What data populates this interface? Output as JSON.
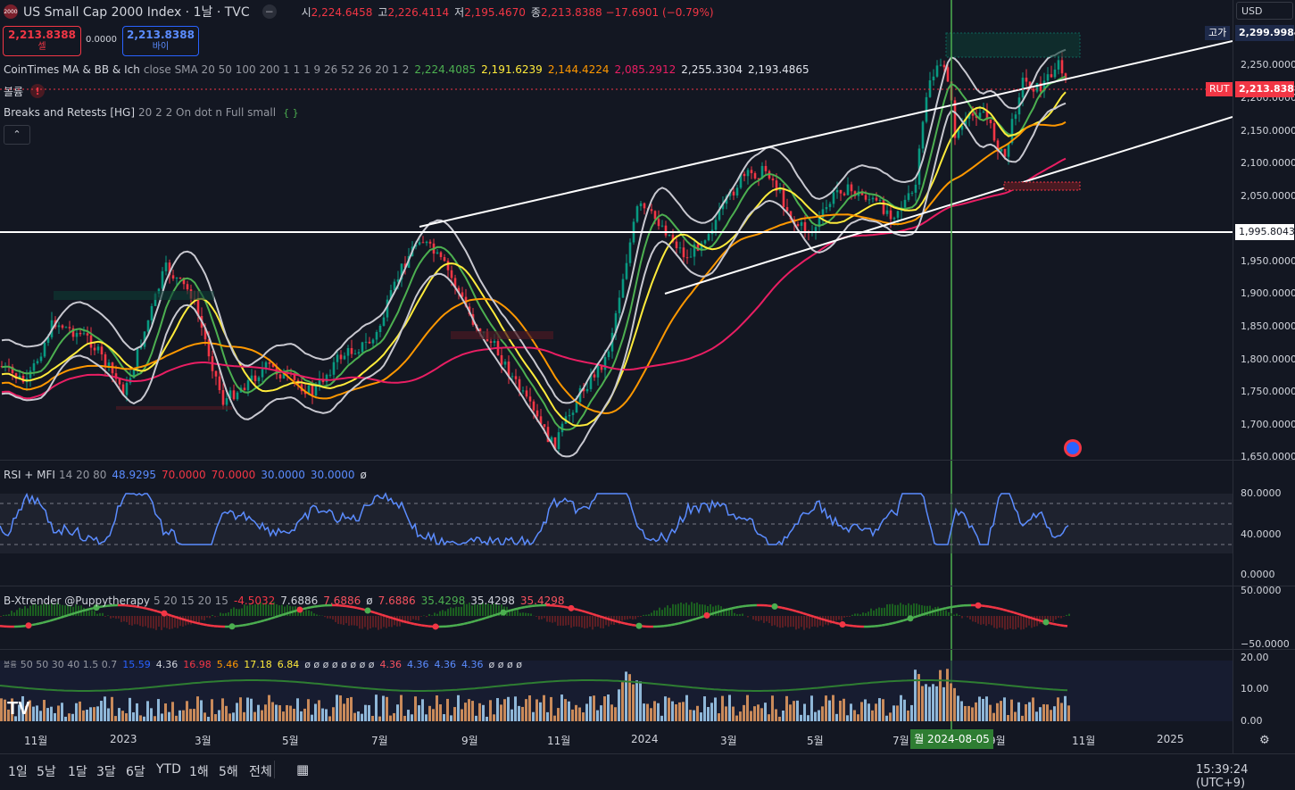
{
  "header": {
    "logo_text": "2000",
    "title": "US Small Cap 2000 Index · 1날 · TVC",
    "ohlc": [
      {
        "k": "시",
        "v": "2,224.6458"
      },
      {
        "k": "고",
        "v": "2,226.4114"
      },
      {
        "k": "저",
        "v": "2,195.4670"
      },
      {
        "k": "종",
        "v": "2,213.8388 −17.6901 (−0.79%)"
      }
    ],
    "currency": "USD"
  },
  "trade": {
    "sell_price": "2,213.8388",
    "sell_label": "셀",
    "spread": "0.0000",
    "buy_price": "2,213.8388",
    "buy_label": "바이"
  },
  "indicators": {
    "ma_name": "CoinTimes MA & BB & Ich",
    "ma_params": "close SMA 20 50 100 200 1 1 1 9 26 52 26 20 1 2",
    "ma_values": [
      {
        "v": "2,224.4085",
        "c": "#4caf50"
      },
      {
        "v": "2,191.6239",
        "c": "#ffeb3b"
      },
      {
        "v": "2,144.4224",
        "c": "#ff9800"
      },
      {
        "v": "2,085.2912",
        "c": "#e91e63"
      },
      {
        "v": "2,255.3304",
        "c": "#e0e3eb"
      },
      {
        "v": "2,193.4865",
        "c": "#e0e3eb"
      }
    ],
    "volume_label": "볼륨",
    "breaks_name": "Breaks and Retests [HG]",
    "breaks_params": "20 2 2 On dot n Full small",
    "collapse_label": "⌃"
  },
  "price_axis": {
    "labels": [
      "2,250.0000",
      "2,200.0000",
      "2,150.0000",
      "2,100.0000",
      "2,050.0000",
      "1,950.0000",
      "1,900.0000",
      "1,850.0000",
      "1,800.0000",
      "1,750.0000",
      "1,700.0000",
      "1,650.0000"
    ],
    "high_tag_label": "고가",
    "high_tag_value": "2,299.9984",
    "last_tag_label": "RUT",
    "last_tag_value": "2,213.8388",
    "hline_value": "1,995.8043"
  },
  "rsi": {
    "name": "RSI + MFI",
    "params": "14 20 80",
    "values": [
      {
        "v": "48.9295",
        "c": "#5b8cff"
      },
      {
        "v": "70.0000",
        "c": "#f23645"
      },
      {
        "v": "70.0000",
        "c": "#f23645"
      },
      {
        "v": "30.0000",
        "c": "#5b8cff"
      },
      {
        "v": "30.0000",
        "c": "#5b8cff"
      },
      {
        "v": "ø",
        "c": "#d1d4dc"
      }
    ],
    "axis": [
      "80.0000",
      "40.0000",
      "0.0000"
    ]
  },
  "xtrender": {
    "name": "B-Xtrender @Puppytherapy",
    "params": "5 20 15 20 15",
    "values": [
      {
        "v": "-4.5032",
        "c": "#f23645"
      },
      {
        "v": "7.6886",
        "c": "#d1d4dc"
      },
      {
        "v": "7.6886",
        "c": "#f7525f"
      },
      {
        "v": "ø",
        "c": "#d1d4dc"
      },
      {
        "v": "7.6886",
        "c": "#f7525f"
      },
      {
        "v": "35.4298",
        "c": "#4caf50"
      },
      {
        "v": "35.4298",
        "c": "#d1d4dc"
      },
      {
        "v": "35.4298",
        "c": "#f7525f"
      }
    ],
    "axis": [
      "50.0000",
      "−50.0000"
    ]
  },
  "vol2": {
    "name": "볼륨",
    "params": "50 50 30 40 1.5 0.7",
    "values": [
      {
        "v": "15.59",
        "c": "#2962ff"
      },
      {
        "v": "4.36",
        "c": "#d1d4dc"
      },
      {
        "v": "16.98",
        "c": "#f23645"
      },
      {
        "v": "5.46",
        "c": "#ff9800"
      },
      {
        "v": "17.18",
        "c": "#ffeb3b"
      },
      {
        "v": "6.84",
        "c": "#ffeb3b"
      },
      {
        "v": "ø ø ø ø ø ø ø ø",
        "c": "#d1d4dc"
      },
      {
        "v": "4.36",
        "c": "#f7525f"
      },
      {
        "v": "4.36",
        "c": "#5b8cff"
      },
      {
        "v": "4.36",
        "c": "#5b8cff"
      },
      {
        "v": "4.36",
        "c": "#5b8cff"
      },
      {
        "v": "ø ø ø ø",
        "c": "#d1d4dc"
      }
    ],
    "axis": [
      "20.00",
      "10.00",
      "0.00"
    ]
  },
  "time_axis": {
    "labels": [
      {
        "t": "11월",
        "x": 27
      },
      {
        "t": "2023",
        "x": 123
      },
      {
        "t": "3월",
        "x": 218
      },
      {
        "t": "5월",
        "x": 316
      },
      {
        "t": "7월",
        "x": 416
      },
      {
        "t": "9월",
        "x": 517
      },
      {
        "t": "11월",
        "x": 613
      },
      {
        "t": "2024",
        "x": 707
      },
      {
        "t": "3월",
        "x": 807
      },
      {
        "t": "5월",
        "x": 904
      },
      {
        "t": "7월",
        "x": 1000
      },
      {
        "t": "9월",
        "x": 1108
      },
      {
        "t": "11월",
        "x": 1201
      },
      {
        "t": "2025",
        "x": 1296
      }
    ],
    "crosshair_date": "월 2024-08-05"
  },
  "timeframes": [
    "1일",
    "5날",
    "1달",
    "3달",
    "6달",
    "YTD",
    "1해",
    "5해",
    "전체"
  ],
  "clock": "15:39:24 (UTC+9)",
  "colors": {
    "bg": "#131722",
    "up": "#089981",
    "down": "#f23645",
    "accent": "#2962ff"
  }
}
